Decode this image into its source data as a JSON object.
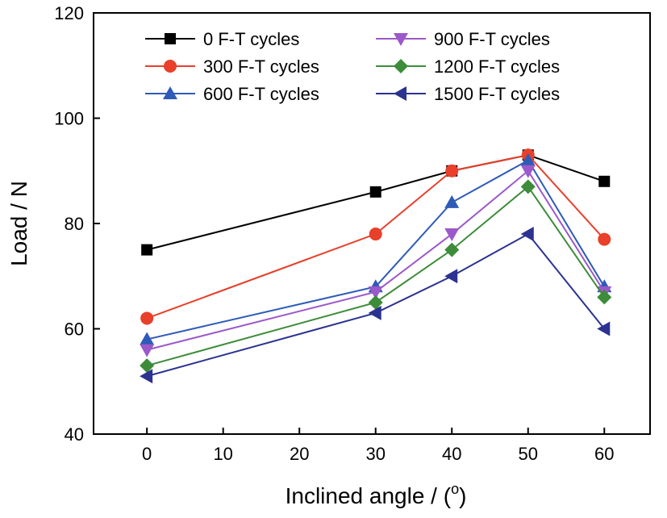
{
  "chart_data": {
    "type": "line",
    "xlabel": "Inclined angle / (",
    "xlabel_sup": "o",
    "xlabel_end": ")",
    "ylabel": "Load / N",
    "xlim": [
      -7,
      66
    ],
    "ylim": [
      40,
      120
    ],
    "x_ticks": [
      0,
      10,
      20,
      30,
      40,
      50,
      60
    ],
    "y_ticks": [
      40,
      60,
      80,
      100,
      120
    ],
    "x": [
      0,
      30,
      40,
      50,
      60
    ],
    "legend_position": "top, two columns",
    "grid": false,
    "series": [
      {
        "name": "0 F-T cycles",
        "color": "#000000",
        "marker": "square",
        "values": [
          75,
          86,
          90,
          93,
          88
        ]
      },
      {
        "name": "300 F-T cycles",
        "color": "#e8402a",
        "marker": "circle",
        "values": [
          62,
          78,
          90,
          93,
          77
        ]
      },
      {
        "name": "600 F-T cycles",
        "color": "#2e5bb8",
        "marker": "triangle-up",
        "values": [
          58,
          68,
          84,
          92,
          68
        ]
      },
      {
        "name": "900 F-T cycles",
        "color": "#9b59c9",
        "marker": "triangle-down",
        "values": [
          56,
          67,
          78,
          90,
          67
        ]
      },
      {
        "name": "1200 F-T cycles",
        "color": "#3c8c3a",
        "marker": "diamond",
        "values": [
          53,
          65,
          75,
          87,
          66
        ]
      },
      {
        "name": "1500 F-T cycles",
        "color": "#2b3290",
        "marker": "triangle-left",
        "values": [
          51,
          63,
          70,
          78,
          60
        ]
      }
    ]
  }
}
